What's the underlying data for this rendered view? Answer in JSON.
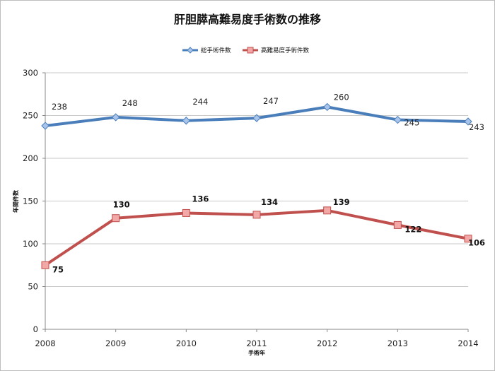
{
  "chart_data": {
    "type": "line",
    "title": "肝胆膵高難易度手術数の推移",
    "xlabel": "手術年",
    "ylabel": "年間件数",
    "x": [
      2008,
      2009,
      2010,
      2011,
      2012,
      2013,
      2014
    ],
    "ylim": [
      0,
      300
    ],
    "yticks": [
      0,
      50,
      100,
      150,
      200,
      250,
      300
    ],
    "grid": true,
    "legend_position": "top-center",
    "series": [
      {
        "name": "総手術件数",
        "values": [
          238,
          248,
          244,
          247,
          260,
          245,
          243
        ],
        "color": "#4a7ebb",
        "marker": "diamond",
        "labels_bold": false
      },
      {
        "name": "高難易度手術件数",
        "values": [
          75,
          130,
          136,
          134,
          139,
          122,
          106
        ],
        "color": "#c0504d",
        "marker": "square",
        "labels_bold": true
      }
    ]
  }
}
